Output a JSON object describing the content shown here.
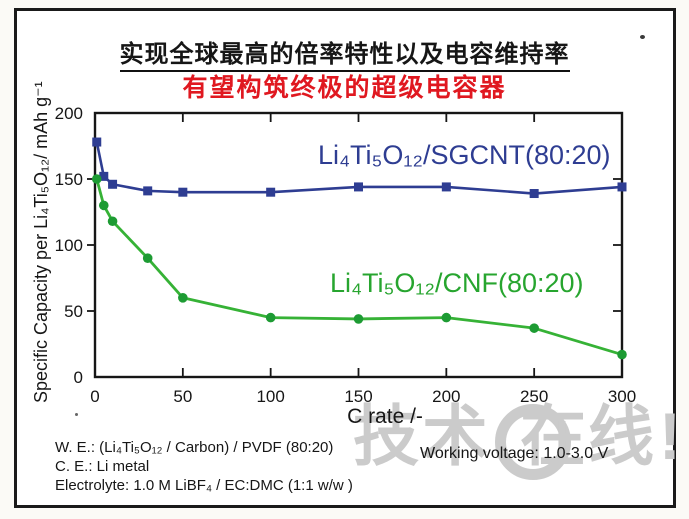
{
  "header": {
    "title_line1": "实现全球最高的倍率特性以及电容维持率",
    "title_line2": "有望构筑终极的超级电容器"
  },
  "chart_data": {
    "type": "line",
    "x": [
      1,
      5,
      10,
      30,
      50,
      100,
      150,
      200,
      250,
      300
    ],
    "series": [
      {
        "name": "Li₄Ti₅O₁₂/SGCNT(80:20)",
        "color": "#2e3d92",
        "marker": "square",
        "values": [
          178,
          152,
          146,
          141,
          140,
          140,
          144,
          144,
          139,
          144
        ]
      },
      {
        "name": "Li₄Ti₅O₁₂/CNF(80:20)",
        "color": "#36b236",
        "marker": "circle",
        "marker_fill": "#1d9b33",
        "values": [
          150,
          130,
          118,
          90,
          60,
          45,
          44,
          45,
          37,
          17
        ]
      }
    ],
    "xlabel": "C rate /-",
    "ylabel": "Specific Capacity per Li₄Ti₅O₁₂/ mAh g⁻¹",
    "xlim": [
      0,
      300
    ],
    "ylim": [
      0,
      200
    ],
    "x_ticks": [
      0,
      50,
      100,
      150,
      200,
      250,
      300
    ],
    "y_ticks": [
      0,
      50,
      100,
      150,
      200
    ],
    "grid": false,
    "legend_position": "inline-annotations"
  },
  "footnotes": {
    "lines": [
      "W. E.: (Li₄Ti₅O₁₂ / Carbon) / PVDF (80:20)",
      "C. E.: Li metal",
      "Electrolyte: 1.0 M LiBF₄ / EC:DMC (1:1 w/w )"
    ],
    "working_voltage": "Working voltage: 1.0-3.0 V"
  },
  "watermark": {
    "part1": "技术",
    "part2": "在线",
    "suffix": "!"
  },
  "colors": {
    "series_blue": "#2e3d92",
    "series_green": "#36b236",
    "title_red": "#e01820",
    "watermark_gray": "#cbcbcb",
    "axis_black": "#161616"
  }
}
